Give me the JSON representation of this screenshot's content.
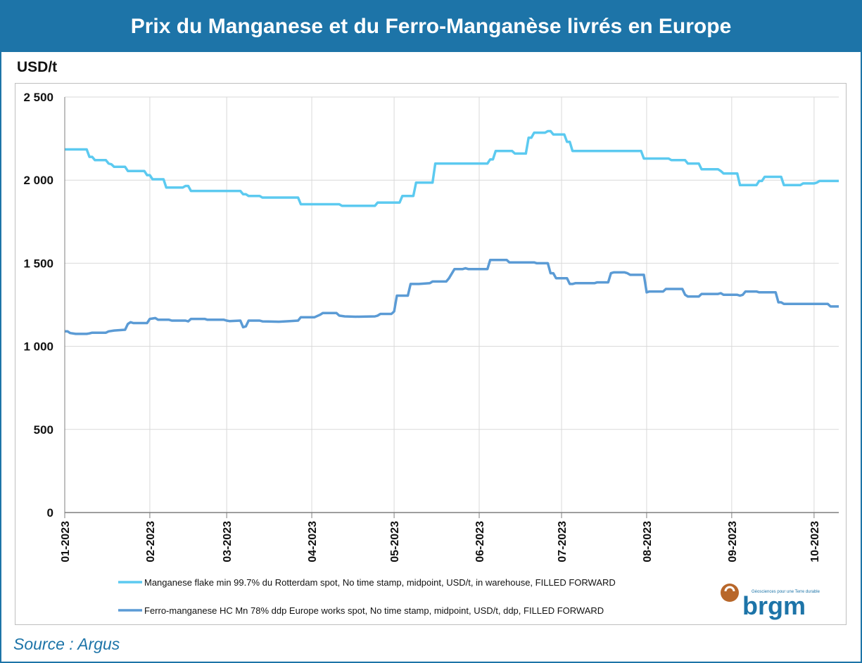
{
  "header": {
    "title": "Prix du Manganese et du Ferro-Manganèse livrés en Europe"
  },
  "footer": {
    "source": "Source : Argus"
  },
  "logo": {
    "wordmark": "brgm",
    "tagline": "Géosciences pour une Terre durable"
  },
  "colors": {
    "accent": "#1d74a8",
    "series1": "#5ccaf0",
    "series2": "#5b9bd5",
    "grid": "#d9d9d9"
  },
  "chart_data": {
    "type": "line",
    "ylabel": "USD/t",
    "ylim": [
      0,
      2500
    ],
    "yticks": [
      0,
      500,
      1000,
      1500,
      2000,
      2500
    ],
    "ytick_labels": [
      "0",
      "500",
      "1 000",
      "1 500",
      "2 000",
      "2 500"
    ],
    "xlim": [
      "2023-01-01",
      "2023-10-10"
    ],
    "xticks": [
      "2023-01-01",
      "2023-02-01",
      "2023-03-01",
      "2023-04-01",
      "2023-05-01",
      "2023-06-01",
      "2023-07-01",
      "2023-08-01",
      "2023-09-01",
      "2023-10-01"
    ],
    "xtick_labels": [
      "01-2023",
      "02-2023",
      "03-2023",
      "04-2023",
      "05-2023",
      "06-2023",
      "07-2023",
      "08-2023",
      "09-2023",
      "10-2023"
    ],
    "grid": true,
    "legend_position": "bottom",
    "series": [
      {
        "name": "Manganese flake min 99.7% du Rotterdam spot, No time stamp, midpoint, USD/t, in warehouse, FILLED FORWARD",
        "color": "#5ccaf0",
        "points": [
          [
            "2023-01-01",
            2185
          ],
          [
            "2023-01-09",
            2185
          ],
          [
            "2023-01-10",
            2140
          ],
          [
            "2023-01-11",
            2140
          ],
          [
            "2023-01-12",
            2120
          ],
          [
            "2023-01-16",
            2120
          ],
          [
            "2023-01-17",
            2100
          ],
          [
            "2023-01-18",
            2095
          ],
          [
            "2023-01-19",
            2080
          ],
          [
            "2023-01-23",
            2080
          ],
          [
            "2023-01-24",
            2055
          ],
          [
            "2023-01-30",
            2055
          ],
          [
            "2023-01-31",
            2030
          ],
          [
            "2023-02-01",
            2030
          ],
          [
            "2023-02-02",
            2005
          ],
          [
            "2023-02-06",
            2005
          ],
          [
            "2023-02-07",
            1955
          ],
          [
            "2023-02-13",
            1955
          ],
          [
            "2023-02-14",
            1965
          ],
          [
            "2023-02-15",
            1965
          ],
          [
            "2023-02-16",
            1935
          ],
          [
            "2023-03-06",
            1935
          ],
          [
            "2023-03-07",
            1915
          ],
          [
            "2023-03-08",
            1915
          ],
          [
            "2023-03-09",
            1905
          ],
          [
            "2023-03-13",
            1905
          ],
          [
            "2023-03-14",
            1895
          ],
          [
            "2023-03-27",
            1895
          ],
          [
            "2023-03-28",
            1855
          ],
          [
            "2023-04-11",
            1855
          ],
          [
            "2023-04-12",
            1845
          ],
          [
            "2023-04-24",
            1845
          ],
          [
            "2023-04-25",
            1865
          ],
          [
            "2023-05-03",
            1865
          ],
          [
            "2023-05-04",
            1905
          ],
          [
            "2023-05-08",
            1905
          ],
          [
            "2023-05-09",
            1985
          ],
          [
            "2023-05-15",
            1985
          ],
          [
            "2023-05-16",
            2100
          ],
          [
            "2023-06-04",
            2100
          ],
          [
            "2023-06-05",
            2125
          ],
          [
            "2023-06-06",
            2125
          ],
          [
            "2023-06-07",
            2175
          ],
          [
            "2023-06-13",
            2175
          ],
          [
            "2023-06-14",
            2160
          ],
          [
            "2023-06-18",
            2160
          ],
          [
            "2023-06-19",
            2255
          ],
          [
            "2023-06-20",
            2255
          ],
          [
            "2023-06-21",
            2285
          ],
          [
            "2023-06-25",
            2285
          ],
          [
            "2023-06-26",
            2295
          ],
          [
            "2023-06-27",
            2295
          ],
          [
            "2023-06-28",
            2275
          ],
          [
            "2023-07-02",
            2275
          ],
          [
            "2023-07-03",
            2230
          ],
          [
            "2023-07-04",
            2230
          ],
          [
            "2023-07-05",
            2175
          ],
          [
            "2023-07-30",
            2175
          ],
          [
            "2023-07-31",
            2130
          ],
          [
            "2023-08-09",
            2130
          ],
          [
            "2023-08-10",
            2120
          ],
          [
            "2023-08-15",
            2120
          ],
          [
            "2023-08-16",
            2100
          ],
          [
            "2023-08-20",
            2100
          ],
          [
            "2023-08-21",
            2065
          ],
          [
            "2023-08-27",
            2065
          ],
          [
            "2023-08-28",
            2055
          ],
          [
            "2023-08-29",
            2040
          ],
          [
            "2023-09-03",
            2040
          ],
          [
            "2023-09-04",
            1970
          ],
          [
            "2023-09-10",
            1970
          ],
          [
            "2023-09-11",
            1995
          ],
          [
            "2023-09-12",
            1995
          ],
          [
            "2023-09-13",
            2020
          ],
          [
            "2023-09-19",
            2020
          ],
          [
            "2023-09-20",
            1970
          ],
          [
            "2023-09-26",
            1970
          ],
          [
            "2023-09-27",
            1980
          ],
          [
            "2023-10-01",
            1980
          ],
          [
            "2023-10-02",
            1985
          ],
          [
            "2023-10-03",
            1995
          ],
          [
            "2023-10-10",
            1995
          ]
        ]
      },
      {
        "name": "Ferro-manganese HC Mn 78% ddp Europe works spot, No time stamp, midpoint, USD/t, ddp, FILLED FORWARD",
        "color": "#5b9bd5",
        "points": [
          [
            "2023-01-01",
            1090
          ],
          [
            "2023-01-02",
            1090
          ],
          [
            "2023-01-03",
            1080
          ],
          [
            "2023-01-05",
            1075
          ],
          [
            "2023-01-09",
            1075
          ],
          [
            "2023-01-10",
            1078
          ],
          [
            "2023-01-11",
            1082
          ],
          [
            "2023-01-16",
            1082
          ],
          [
            "2023-01-17",
            1090
          ],
          [
            "2023-01-19",
            1095
          ],
          [
            "2023-01-23",
            1100
          ],
          [
            "2023-01-24",
            1135
          ],
          [
            "2023-01-25",
            1145
          ],
          [
            "2023-01-26",
            1140
          ],
          [
            "2023-01-31",
            1140
          ],
          [
            "2023-02-01",
            1165
          ],
          [
            "2023-02-03",
            1170
          ],
          [
            "2023-02-04",
            1160
          ],
          [
            "2023-02-08",
            1160
          ],
          [
            "2023-02-09",
            1155
          ],
          [
            "2023-02-14",
            1155
          ],
          [
            "2023-02-15",
            1150
          ],
          [
            "2023-02-16",
            1165
          ],
          [
            "2023-02-21",
            1165
          ],
          [
            "2023-02-22",
            1160
          ],
          [
            "2023-02-28",
            1160
          ],
          [
            "2023-03-01",
            1155
          ],
          [
            "2023-03-02",
            1152
          ],
          [
            "2023-03-06",
            1155
          ],
          [
            "2023-03-07",
            1115
          ],
          [
            "2023-03-08",
            1120
          ],
          [
            "2023-03-09",
            1155
          ],
          [
            "2023-03-13",
            1155
          ],
          [
            "2023-03-14",
            1150
          ],
          [
            "2023-03-20",
            1148
          ],
          [
            "2023-03-24",
            1152
          ],
          [
            "2023-03-27",
            1155
          ],
          [
            "2023-03-28",
            1175
          ],
          [
            "2023-04-02",
            1175
          ],
          [
            "2023-04-04",
            1190
          ],
          [
            "2023-04-05",
            1200
          ],
          [
            "2023-04-10",
            1200
          ],
          [
            "2023-04-11",
            1185
          ],
          [
            "2023-04-13",
            1180
          ],
          [
            "2023-04-17",
            1178
          ],
          [
            "2023-04-24",
            1180
          ],
          [
            "2023-04-25",
            1185
          ],
          [
            "2023-04-26",
            1195
          ],
          [
            "2023-04-30",
            1195
          ],
          [
            "2023-05-01",
            1210
          ],
          [
            "2023-05-02",
            1305
          ],
          [
            "2023-05-06",
            1305
          ],
          [
            "2023-05-07",
            1375
          ],
          [
            "2023-05-10",
            1375
          ],
          [
            "2023-05-14",
            1380
          ],
          [
            "2023-05-15",
            1390
          ],
          [
            "2023-05-20",
            1390
          ],
          [
            "2023-05-21",
            1410
          ],
          [
            "2023-05-23",
            1465
          ],
          [
            "2023-05-26",
            1465
          ],
          [
            "2023-05-27",
            1470
          ],
          [
            "2023-05-28",
            1465
          ],
          [
            "2023-06-04",
            1465
          ],
          [
            "2023-06-05",
            1520
          ],
          [
            "2023-06-11",
            1520
          ],
          [
            "2023-06-12",
            1505
          ],
          [
            "2023-06-21",
            1505
          ],
          [
            "2023-06-22",
            1500
          ],
          [
            "2023-06-26",
            1500
          ],
          [
            "2023-06-27",
            1440
          ],
          [
            "2023-06-28",
            1440
          ],
          [
            "2023-06-29",
            1410
          ],
          [
            "2023-07-03",
            1410
          ],
          [
            "2023-07-04",
            1375
          ],
          [
            "2023-07-05",
            1375
          ],
          [
            "2023-07-06",
            1380
          ],
          [
            "2023-07-13",
            1380
          ],
          [
            "2023-07-14",
            1385
          ],
          [
            "2023-07-18",
            1385
          ],
          [
            "2023-07-19",
            1440
          ],
          [
            "2023-07-20",
            1445
          ],
          [
            "2023-07-24",
            1445
          ],
          [
            "2023-07-25",
            1440
          ],
          [
            "2023-07-26",
            1430
          ],
          [
            "2023-07-31",
            1430
          ],
          [
            "2023-08-01",
            1325
          ],
          [
            "2023-08-02",
            1330
          ],
          [
            "2023-08-07",
            1330
          ],
          [
            "2023-08-08",
            1345
          ],
          [
            "2023-08-14",
            1345
          ],
          [
            "2023-08-15",
            1310
          ],
          [
            "2023-08-16",
            1300
          ],
          [
            "2023-08-20",
            1300
          ],
          [
            "2023-08-21",
            1315
          ],
          [
            "2023-08-27",
            1315
          ],
          [
            "2023-08-28",
            1320
          ],
          [
            "2023-08-29",
            1310
          ],
          [
            "2023-09-03",
            1310
          ],
          [
            "2023-09-04",
            1305
          ],
          [
            "2023-09-05",
            1310
          ],
          [
            "2023-09-06",
            1330
          ],
          [
            "2023-09-10",
            1330
          ],
          [
            "2023-09-11",
            1325
          ],
          [
            "2023-09-17",
            1325
          ],
          [
            "2023-09-18",
            1265
          ],
          [
            "2023-09-19",
            1265
          ],
          [
            "2023-09-20",
            1255
          ],
          [
            "2023-10-06",
            1255
          ],
          [
            "2023-10-07",
            1240
          ],
          [
            "2023-10-10",
            1240
          ]
        ]
      }
    ]
  }
}
